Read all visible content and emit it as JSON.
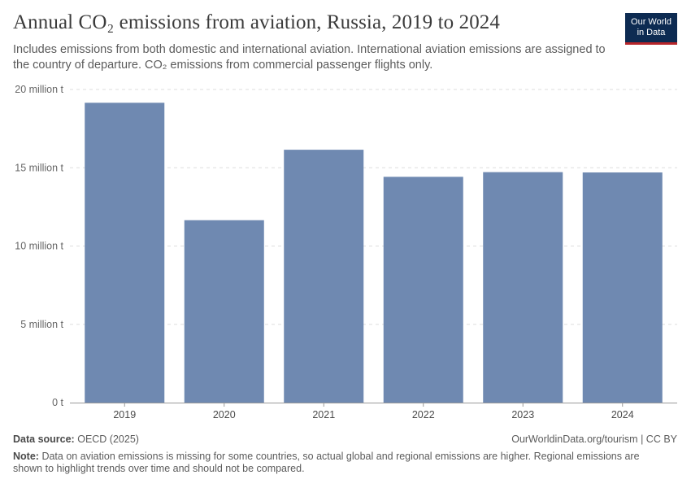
{
  "header": {
    "title": "Annual CO₂ emissions from aviation, Russia, 2019 to 2024",
    "subtitle": "Includes emissions from both domestic and international aviation. International aviation emissions are assigned to the country of departure. CO₂ emissions from commercial passenger flights only.",
    "logo_line1": "Our World",
    "logo_line2": "in Data"
  },
  "footer": {
    "source_label": "Data source:",
    "source_value": "OECD (2025)",
    "url": "OurWorldinData.org/tourism | CC BY",
    "note_label": "Note:",
    "note_text": "Data on aviation emissions is missing for some countries, so actual global and regional emissions are higher. Regional emissions are shown to highlight trends over time and should not be compared."
  },
  "colors": {
    "bar": "#6f89b1",
    "grid": "#dddddd",
    "axis": "#999999",
    "label": "#666666",
    "logo_bg": "#0d2b52",
    "logo_accent": "#b6252a"
  },
  "chart_data": {
    "type": "bar",
    "title": "Annual CO₂ emissions from aviation, Russia, 2019 to 2024",
    "xlabel": "",
    "ylabel": "",
    "categories": [
      "2019",
      "2020",
      "2021",
      "2022",
      "2023",
      "2024"
    ],
    "values": [
      19150000,
      11650000,
      16150000,
      14420000,
      14720000,
      14700000
    ],
    "unit": "t",
    "ylim": [
      0,
      20000000
    ],
    "yticks": [
      0,
      5000000,
      10000000,
      15000000,
      20000000
    ],
    "ytick_labels": [
      "0 t",
      "5 million t",
      "10 million t",
      "15 million t",
      "20 million t"
    ],
    "grid": true
  }
}
